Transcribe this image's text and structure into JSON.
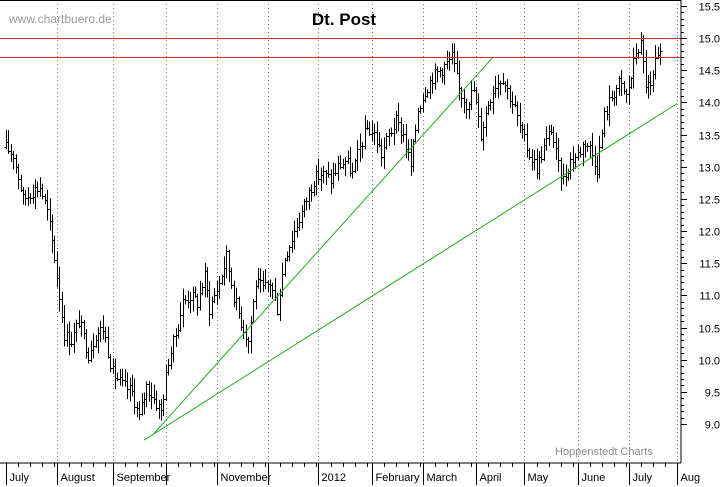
{
  "chart_data": {
    "type": "ohlc",
    "title": "Dt. Post",
    "watermark": "www.chartbuero.de",
    "credit": "Hoppenstedt Charts",
    "y_axis_side": "right",
    "ylim": [
      8.6,
      15.6
    ],
    "y_ticks": [
      9.0,
      9.5,
      10.0,
      10.5,
      11.0,
      11.5,
      12.0,
      12.5,
      13.0,
      13.5,
      14.0,
      14.5,
      15.0,
      15.5
    ],
    "y_tick_labels": [
      "9.0",
      "9.5",
      "10.0",
      "10.5",
      "11.0",
      "11.5",
      "12.0",
      "12.5",
      "13.0",
      "13.5",
      "14.0",
      "14.5",
      "15.0",
      "15.5"
    ],
    "x_range_trading_days": [
      0,
      277
    ],
    "month_labels": [
      {
        "label": "July",
        "start_day": 0
      },
      {
        "label": "August",
        "start_day": 21
      },
      {
        "label": "September",
        "start_day": 44
      },
      {
        "label": "",
        "start_day": 66
      },
      {
        "label": "November",
        "start_day": 87
      },
      {
        "label": "",
        "start_day": 108
      },
      {
        "label": "2012",
        "start_day": 129
      },
      {
        "label": "February",
        "start_day": 151
      },
      {
        "label": "March",
        "start_day": 172
      },
      {
        "label": "April",
        "start_day": 194
      },
      {
        "label": "May",
        "start_day": 214
      },
      {
        "label": "June",
        "start_day": 236
      },
      {
        "label": "July",
        "start_day": 257
      },
      {
        "label": "Aug",
        "start_day": 277
      }
    ],
    "price_anchors": [
      [
        0,
        13.3
      ],
      [
        3,
        13.2
      ],
      [
        7,
        12.5
      ],
      [
        10,
        12.6
      ],
      [
        14,
        12.7
      ],
      [
        17,
        12.3
      ],
      [
        20,
        11.6
      ],
      [
        24,
        10.4
      ],
      [
        27,
        10.3
      ],
      [
        30,
        10.6
      ],
      [
        34,
        10.1
      ],
      [
        37,
        10.4
      ],
      [
        40,
        10.5
      ],
      [
        44,
        9.8
      ],
      [
        48,
        9.6
      ],
      [
        52,
        9.5
      ],
      [
        55,
        9.1
      ],
      [
        58,
        9.6
      ],
      [
        61,
        9.4
      ],
      [
        64,
        9.2
      ],
      [
        67,
        10.0
      ],
      [
        70,
        10.4
      ],
      [
        73,
        10.9
      ],
      [
        76,
        11.0
      ],
      [
        79,
        10.9
      ],
      [
        82,
        11.3
      ],
      [
        84,
        10.8
      ],
      [
        88,
        11.2
      ],
      [
        91,
        11.6
      ],
      [
        94,
        11.0
      ],
      [
        97,
        10.6
      ],
      [
        100,
        10.3
      ],
      [
        103,
        11.2
      ],
      [
        106,
        11.1
      ],
      [
        109,
        11.2
      ],
      [
        112,
        10.8
      ],
      [
        115,
        11.6
      ],
      [
        118,
        11.9
      ],
      [
        121,
        12.2
      ],
      [
        124,
        12.5
      ],
      [
        127,
        12.8
      ],
      [
        130,
        12.9
      ],
      [
        134,
        12.8
      ],
      [
        137,
        13.0
      ],
      [
        140,
        13.1
      ],
      [
        143,
        12.9
      ],
      [
        146,
        13.3
      ],
      [
        149,
        13.6
      ],
      [
        152,
        13.5
      ],
      [
        155,
        13.2
      ],
      [
        158,
        13.5
      ],
      [
        161,
        13.7
      ],
      [
        164,
        13.5
      ],
      [
        167,
        13.0
      ],
      [
        170,
        13.9
      ],
      [
        173,
        14.2
      ],
      [
        176,
        14.4
      ],
      [
        179,
        14.5
      ],
      [
        182,
        14.6
      ],
      [
        184,
        14.7
      ],
      [
        187,
        14.2
      ],
      [
        190,
        14.0
      ],
      [
        193,
        14.2
      ],
      [
        196,
        13.5
      ],
      [
        199,
        14.0
      ],
      [
        202,
        14.3
      ],
      [
        205,
        14.4
      ],
      [
        207,
        14.2
      ],
      [
        210,
        13.9
      ],
      [
        213,
        13.5
      ],
      [
        216,
        13.2
      ],
      [
        219,
        13.0
      ],
      [
        222,
        13.3
      ],
      [
        225,
        13.6
      ],
      [
        228,
        13.0
      ],
      [
        230,
        12.8
      ],
      [
        233,
        13.1
      ],
      [
        236,
        13.2
      ],
      [
        239,
        13.4
      ],
      [
        241,
        13.3
      ],
      [
        244,
        13.0
      ],
      [
        247,
        13.8
      ],
      [
        250,
        14.1
      ],
      [
        253,
        14.3
      ],
      [
        256,
        14.1
      ],
      [
        258,
        14.4
      ],
      [
        260,
        14.8
      ],
      [
        262,
        14.9
      ],
      [
        264,
        14.3
      ],
      [
        266,
        14.2
      ],
      [
        268,
        14.6
      ],
      [
        270,
        14.7
      ]
    ],
    "horizontal_lines": [
      {
        "y": 15.0,
        "color": "#cc3322"
      },
      {
        "y": 14.7,
        "color": "#cc3322"
      }
    ],
    "trend_lines": [
      {
        "from": [
          61,
          8.85
        ],
        "to": [
          201,
          14.7
        ],
        "color": "#22aa22"
      },
      {
        "from": [
          57,
          8.75
        ],
        "to": [
          277,
          13.98
        ],
        "color": "#22aa22"
      }
    ],
    "grid": "vertical-month-dotted",
    "bar_color": "#000000"
  }
}
